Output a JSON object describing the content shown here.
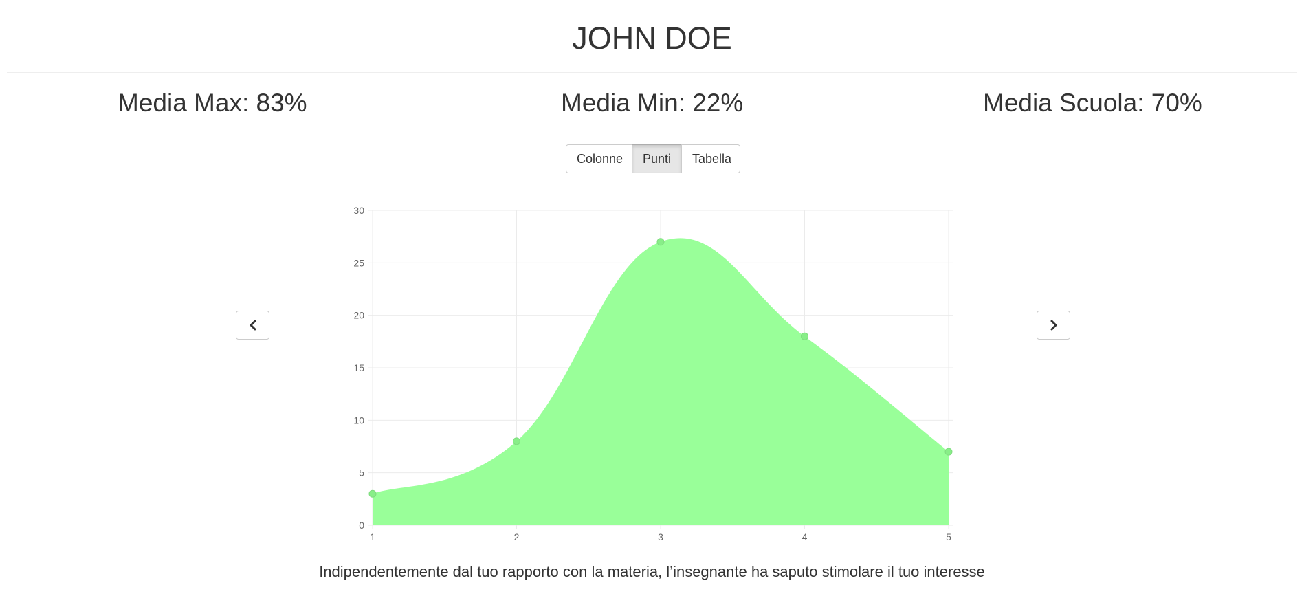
{
  "header": {
    "title": "JOHN DOE"
  },
  "stats": {
    "max": "Media Max: 83%",
    "min": "Media Min: 22%",
    "school": "Media Scuola: 70%"
  },
  "view_toggle": {
    "buttons": [
      {
        "label": "Colonne",
        "active": false
      },
      {
        "label": "Punti",
        "active": true
      },
      {
        "label": "Tabella",
        "active": false
      }
    ]
  },
  "navigation": {
    "prev_icon": "chevron-left-icon",
    "next_icon": "chevron-right-icon"
  },
  "chart_data": {
    "type": "area",
    "x": [
      1,
      2,
      3,
      4,
      5
    ],
    "series": [
      {
        "values": [
          3,
          8,
          27,
          18,
          7
        ],
        "color": "#99ff99",
        "point_color": "#88ee88"
      }
    ],
    "xlim": [
      1,
      5
    ],
    "ylim": [
      0,
      30
    ],
    "y_ticks": [
      0,
      5,
      10,
      15,
      20,
      25,
      30
    ],
    "x_ticks": [
      1,
      2,
      3,
      4,
      5
    ],
    "grid": true,
    "smooth": true
  },
  "caption": "Indipendentemente dal tuo rapporto con la materia, l’insegnante ha saputo stimolare il tuo interesse"
}
